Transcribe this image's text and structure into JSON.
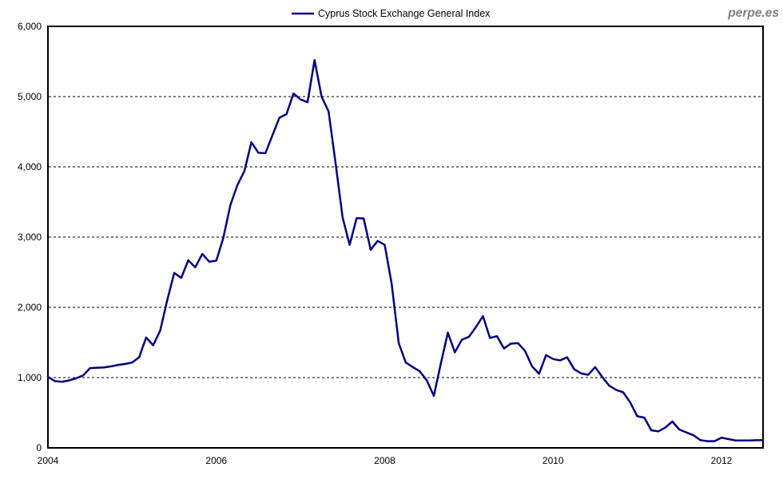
{
  "watermark": {
    "text": "perpe.es"
  },
  "legend": {
    "label": "Cyprus Stock Exchange General Index"
  },
  "colors": {
    "line": "#000080",
    "frame": "#000000",
    "grid": "#000000",
    "axis_text": "#000000",
    "legend_text": "#000000",
    "watermark": "#808080",
    "background": "#ffffff"
  },
  "chart_data": {
    "type": "line",
    "title": "",
    "xlabel": "",
    "ylabel": "",
    "legend_position": "top-center",
    "grid": "horizontal-dashed",
    "ylim": [
      0,
      6000
    ],
    "x_start": "2004-01",
    "interval": "monthly",
    "x_end": "2012-07",
    "y_ticks": [
      {
        "label": "6,000",
        "value": 6000
      },
      {
        "label": "5,000",
        "value": 5000
      },
      {
        "label": "4,000",
        "value": 4000
      },
      {
        "label": "3,000",
        "value": 3000
      },
      {
        "label": "2,000",
        "value": 2000
      },
      {
        "label": "1,000",
        "value": 1000
      },
      {
        "label": "0",
        "value": 0
      }
    ],
    "x_ticks": [
      {
        "label": "2004",
        "month_index": 0
      },
      {
        "label": "2006",
        "month_index": 24
      },
      {
        "label": "2008",
        "month_index": 48
      },
      {
        "label": "2010",
        "month_index": 72
      },
      {
        "label": "2012",
        "month_index": 96
      }
    ],
    "series": [
      {
        "name": "Cyprus Stock Exchange General Index",
        "color": "#000080",
        "values": [
          1010,
          950,
          940,
          960,
          990,
          1030,
          1135,
          1140,
          1145,
          1160,
          1180,
          1195,
          1215,
          1290,
          1570,
          1460,
          1670,
          2100,
          2490,
          2420,
          2670,
          2570,
          2760,
          2650,
          2665,
          2990,
          3455,
          3740,
          3940,
          4350,
          4200,
          4195,
          4450,
          4700,
          4750,
          5045,
          4960,
          4920,
          5520,
          5000,
          4790,
          4050,
          3280,
          2890,
          3270,
          3265,
          2820,
          2945,
          2890,
          2330,
          1490,
          1215,
          1150,
          1090,
          960,
          740,
          1200,
          1640,
          1360,
          1540,
          1580,
          1720,
          1875,
          1565,
          1590,
          1415,
          1485,
          1490,
          1380,
          1160,
          1055,
          1320,
          1265,
          1245,
          1290,
          1120,
          1060,
          1040,
          1150,
          1010,
          885,
          825,
          790,
          645,
          450,
          430,
          250,
          235,
          290,
          375,
          260,
          220,
          180,
          110,
          95,
          95,
          145,
          125,
          105,
          105,
          105,
          110,
          110
        ]
      }
    ]
  }
}
